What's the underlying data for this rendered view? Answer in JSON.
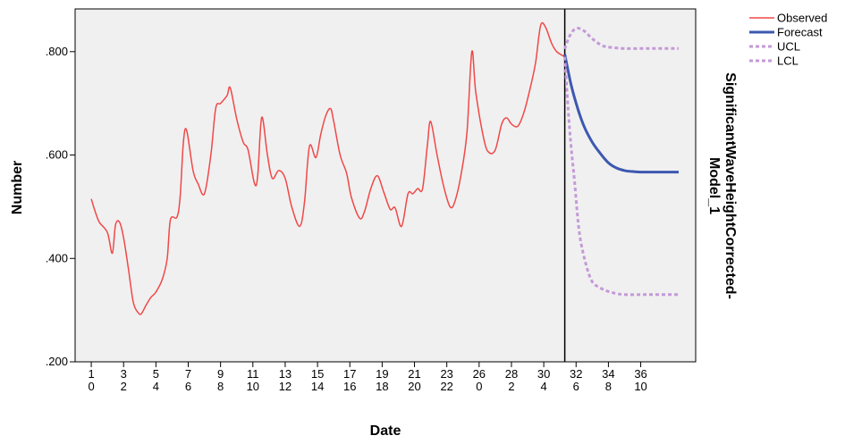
{
  "chart_data": {
    "type": "line",
    "xlabel": "Date",
    "ylabel": "Number",
    "right_title": "SignificantWaveHeightCorrected-\nModel_1",
    "ylim": [
      0.2,
      0.8826
    ],
    "y_ticks": [
      {
        "value": 0.2,
        "label": ".200"
      },
      {
        "value": 0.4,
        "label": ".400"
      },
      {
        "value": 0.6,
        "label": ".600"
      },
      {
        "value": 0.8,
        "label": ".800"
      }
    ],
    "xlim": [
      0,
      38.4
    ],
    "x_ticks": [
      {
        "x": 1,
        "top": "1",
        "bottom": "0"
      },
      {
        "x": 3,
        "top": "3",
        "bottom": "2"
      },
      {
        "x": 5,
        "top": "5",
        "bottom": "4"
      },
      {
        "x": 7,
        "top": "7",
        "bottom": "6"
      },
      {
        "x": 9,
        "top": "9",
        "bottom": "8"
      },
      {
        "x": 11,
        "top": "11",
        "bottom": "10"
      },
      {
        "x": 13,
        "top": "13",
        "bottom": "12"
      },
      {
        "x": 15,
        "top": "15",
        "bottom": "14"
      },
      {
        "x": 17,
        "top": "17",
        "bottom": "16"
      },
      {
        "x": 19,
        "top": "19",
        "bottom": "18"
      },
      {
        "x": 21,
        "top": "21",
        "bottom": "20"
      },
      {
        "x": 23,
        "top": "23",
        "bottom": "22"
      },
      {
        "x": 25,
        "top": "26",
        "bottom": "0"
      },
      {
        "x": 27,
        "top": "28",
        "bottom": "2"
      },
      {
        "x": 29,
        "top": "30",
        "bottom": "4"
      },
      {
        "x": 31,
        "top": "32",
        "bottom": "6"
      },
      {
        "x": 33,
        "top": "34",
        "bottom": "8"
      },
      {
        "x": 35,
        "top": "36",
        "bottom": "10"
      }
    ],
    "forecast_start_x": 30.3,
    "colors": {
      "observed": "#f04848",
      "forecast": "#3c58b0",
      "ucl": "#c49ad8",
      "lcl": "#c49ad8",
      "plot_bg": "#f0f0f0"
    },
    "legend": {
      "placement": "top-right",
      "entries": [
        {
          "label": "Observed",
          "key": "observed"
        },
        {
          "label": "Forecast",
          "key": "forecast"
        },
        {
          "label": "UCL",
          "key": "ucl"
        },
        {
          "label": "LCL",
          "key": "lcl"
        }
      ]
    },
    "series": [
      {
        "key": "observed",
        "points": [
          [
            1,
            0.515
          ],
          [
            1.25,
            0.49
          ],
          [
            1.5,
            0.47
          ],
          [
            2,
            0.45
          ],
          [
            2.3,
            0.41
          ],
          [
            2.5,
            0.465
          ],
          [
            2.75,
            0.47
          ],
          [
            3,
            0.44
          ],
          [
            3.3,
            0.38
          ],
          [
            3.6,
            0.315
          ],
          [
            3.9,
            0.295
          ],
          [
            4.1,
            0.293
          ],
          [
            4.4,
            0.31
          ],
          [
            4.7,
            0.325
          ],
          [
            5,
            0.335
          ],
          [
            5.4,
            0.36
          ],
          [
            5.7,
            0.4
          ],
          [
            5.9,
            0.475
          ],
          [
            6.3,
            0.48
          ],
          [
            6.5,
            0.52
          ],
          [
            6.7,
            0.625
          ],
          [
            6.9,
            0.648
          ],
          [
            7.3,
            0.57
          ],
          [
            7.6,
            0.545
          ],
          [
            8,
            0.525
          ],
          [
            8.4,
            0.6
          ],
          [
            8.7,
            0.69
          ],
          [
            9,
            0.7
          ],
          [
            9.4,
            0.715
          ],
          [
            9.6,
            0.73
          ],
          [
            10,
            0.67
          ],
          [
            10.4,
            0.625
          ],
          [
            10.7,
            0.61
          ],
          [
            11.1,
            0.545
          ],
          [
            11.3,
            0.56
          ],
          [
            11.55,
            0.673
          ],
          [
            11.9,
            0.6
          ],
          [
            12.2,
            0.555
          ],
          [
            12.6,
            0.57
          ],
          [
            13,
            0.555
          ],
          [
            13.4,
            0.5
          ],
          [
            13.9,
            0.462
          ],
          [
            14.2,
            0.51
          ],
          [
            14.5,
            0.617
          ],
          [
            14.9,
            0.595
          ],
          [
            15.2,
            0.64
          ],
          [
            15.5,
            0.675
          ],
          [
            15.8,
            0.69
          ],
          [
            16,
            0.665
          ],
          [
            16.4,
            0.6
          ],
          [
            16.8,
            0.565
          ],
          [
            17.1,
            0.518
          ],
          [
            17.6,
            0.478
          ],
          [
            17.9,
            0.49
          ],
          [
            18.3,
            0.535
          ],
          [
            18.7,
            0.56
          ],
          [
            19.1,
            0.528
          ],
          [
            19.5,
            0.495
          ],
          [
            19.8,
            0.498
          ],
          [
            20.2,
            0.462
          ],
          [
            20.6,
            0.525
          ],
          [
            20.9,
            0.525
          ],
          [
            21.2,
            0.535
          ],
          [
            21.5,
            0.535
          ],
          [
            21.8,
            0.62
          ],
          [
            22,
            0.665
          ],
          [
            22.4,
            0.6
          ],
          [
            22.8,
            0.54
          ],
          [
            23.2,
            0.5
          ],
          [
            23.5,
            0.51
          ],
          [
            23.9,
            0.565
          ],
          [
            24.25,
            0.645
          ],
          [
            24.55,
            0.8
          ],
          [
            24.8,
            0.72
          ],
          [
            25.3,
            0.63
          ],
          [
            25.6,
            0.605
          ],
          [
            26,
            0.61
          ],
          [
            26.4,
            0.66
          ],
          [
            26.7,
            0.672
          ],
          [
            27,
            0.66
          ],
          [
            27.4,
            0.656
          ],
          [
            27.8,
            0.685
          ],
          [
            28.2,
            0.735
          ],
          [
            28.5,
            0.78
          ],
          [
            28.8,
            0.85
          ],
          [
            29.1,
            0.848
          ],
          [
            29.5,
            0.815
          ],
          [
            29.8,
            0.8
          ],
          [
            30.3,
            0.79
          ]
        ]
      },
      {
        "key": "forecast",
        "points": [
          [
            30.3,
            0.795
          ],
          [
            30.7,
            0.735
          ],
          [
            31.1,
            0.69
          ],
          [
            31.5,
            0.655
          ],
          [
            32,
            0.625
          ],
          [
            32.5,
            0.603
          ],
          [
            33,
            0.585
          ],
          [
            33.5,
            0.575
          ],
          [
            34,
            0.57
          ],
          [
            34.5,
            0.568
          ],
          [
            35,
            0.567
          ],
          [
            35.5,
            0.567
          ],
          [
            36,
            0.567
          ],
          [
            37,
            0.567
          ],
          [
            37.35,
            0.567
          ]
        ]
      },
      {
        "key": "ucl",
        "points": [
          [
            30.3,
            0.805
          ],
          [
            30.6,
            0.83
          ],
          [
            31,
            0.845
          ],
          [
            31.5,
            0.84
          ],
          [
            32,
            0.825
          ],
          [
            32.6,
            0.812
          ],
          [
            33.2,
            0.808
          ],
          [
            34,
            0.806
          ],
          [
            35,
            0.806
          ],
          [
            36,
            0.806
          ],
          [
            37.35,
            0.806
          ]
        ]
      },
      {
        "key": "lcl",
        "points": [
          [
            30.3,
            0.79
          ],
          [
            30.6,
            0.65
          ],
          [
            30.9,
            0.55
          ],
          [
            31.2,
            0.45
          ],
          [
            31.6,
            0.39
          ],
          [
            32,
            0.355
          ],
          [
            32.5,
            0.343
          ],
          [
            33,
            0.336
          ],
          [
            33.5,
            0.332
          ],
          [
            34,
            0.33
          ],
          [
            35,
            0.33
          ],
          [
            36,
            0.33
          ],
          [
            37.35,
            0.33
          ]
        ]
      }
    ]
  }
}
